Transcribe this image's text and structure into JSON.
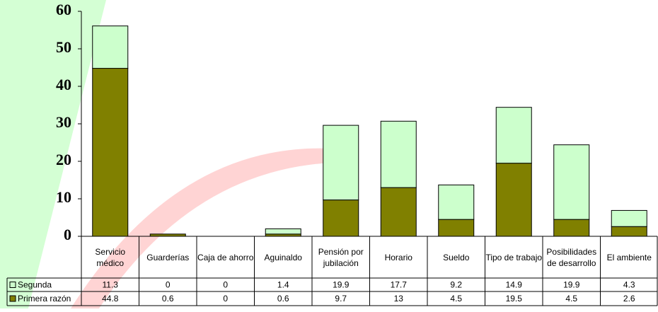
{
  "chart_data": {
    "type": "stacked-bar-table",
    "categories": [
      "Servicio médico",
      "Guarderías",
      "Caja de ahorro",
      "Aguinaldo",
      "Pensión por jubilación",
      "Horario",
      "Sueldo",
      "Tipo de trabajo",
      "Posibilidades de desarrollo",
      "El ambiente"
    ],
    "series": [
      {
        "name": "Segunda",
        "color": "#ccffcc",
        "values": [
          11.3,
          0,
          0,
          1.4,
          19.9,
          17.7,
          9.2,
          14.9,
          19.9,
          4.3
        ]
      },
      {
        "name": "Primera razón",
        "color": "#808000",
        "values": [
          44.8,
          0.6,
          0,
          0.6,
          9.7,
          13,
          4.5,
          19.5,
          4.5,
          2.6
        ]
      }
    ],
    "ylim": [
      0,
      60
    ],
    "yticks": [
      0,
      10,
      20,
      30,
      40,
      50,
      60
    ]
  }
}
